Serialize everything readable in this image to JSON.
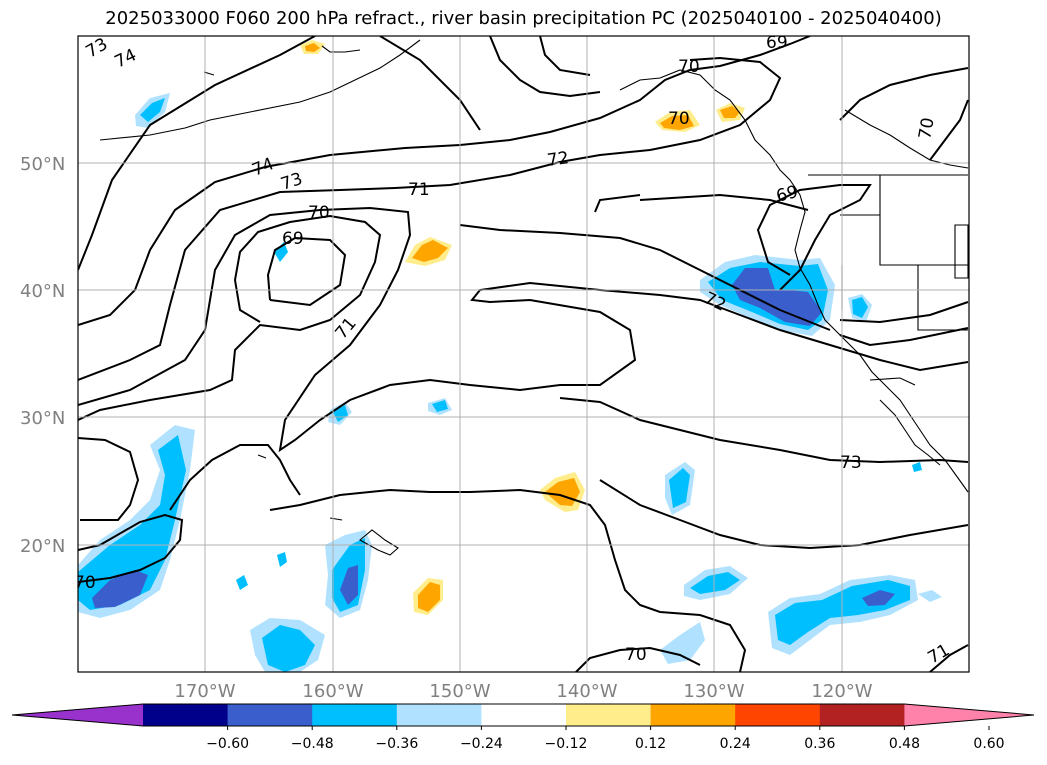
{
  "title": "2025033000 F060 200 hPa refract., river basin precipitation PC (2025040100 - 2025040400)",
  "map": {
    "lon_labels": [
      "170°W",
      "160°W",
      "150°W",
      "140°W",
      "130°W",
      "120°W"
    ],
    "lat_labels": [
      "50°N",
      "40°N",
      "30°N",
      "20°N"
    ],
    "contour_labels": [
      "73",
      "74",
      "74",
      "73",
      "71",
      "70",
      "69",
      "71",
      "72",
      "70",
      "69",
      "70",
      "69",
      "72",
      "73",
      "70",
      "71",
      "70",
      "70"
    ]
  },
  "colorbar": {
    "colors": [
      "#9932cc",
      "#00008b",
      "#3a5fcd",
      "#00bfff",
      "#b0e2ff",
      "#ffffff",
      "#ffec8b",
      "#ffa500",
      "#ff4500",
      "#b22222",
      "#ff82ab"
    ],
    "tick_labels": [
      "−0.60",
      "−0.48",
      "−0.36",
      "−0.24",
      "−0.12",
      "0.12",
      "0.24",
      "0.36",
      "0.48",
      "0.60"
    ]
  }
}
